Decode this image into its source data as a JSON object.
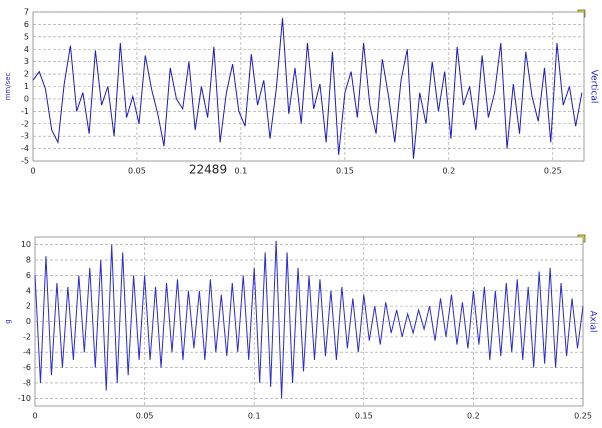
{
  "chart_data": [
    {
      "type": "line",
      "y_label": "mm/sec",
      "annotation": "22489",
      "x": [
        0,
        0.003,
        0.006,
        0.009,
        0.012,
        0.015,
        0.018,
        0.021,
        0.024,
        0.027,
        0.03,
        0.033,
        0.036,
        0.039,
        0.042,
        0.045,
        0.048,
        0.051,
        0.054,
        0.057,
        0.06,
        0.063,
        0.066,
        0.069,
        0.072,
        0.075,
        0.078,
        0.081,
        0.084,
        0.087,
        0.09,
        0.093,
        0.096,
        0.099,
        0.102,
        0.105,
        0.108,
        0.111,
        0.114,
        0.117,
        0.12,
        0.123,
        0.126,
        0.129,
        0.132,
        0.135,
        0.138,
        0.141,
        0.144,
        0.147,
        0.15,
        0.153,
        0.156,
        0.159,
        0.162,
        0.165,
        0.168,
        0.171,
        0.174,
        0.177,
        0.18,
        0.183,
        0.186,
        0.189,
        0.192,
        0.195,
        0.198,
        0.201,
        0.204,
        0.207,
        0.21,
        0.213,
        0.216,
        0.219,
        0.222,
        0.225,
        0.228,
        0.231,
        0.234,
        0.237,
        0.24,
        0.243,
        0.246,
        0.249,
        0.252,
        0.255,
        0.258,
        0.261,
        0.264
      ],
      "series": [
        {
          "name": "Vertical",
          "color": "#1a1acc",
          "values": [
            1.5,
            2.2,
            0.8,
            -2.5,
            -3.5,
            1.2,
            4.3,
            -1,
            0.5,
            -2.8,
            3.9,
            -0.5,
            1,
            -3,
            4.5,
            -1.5,
            0.2,
            -2,
            3.5,
            0.8,
            -1.2,
            -3.8,
            2.5,
            0,
            -0.8,
            3,
            -2.5,
            1,
            -1.5,
            4.2,
            -3.5,
            0.5,
            2.8,
            -1,
            -2.2,
            3.6,
            -0.5,
            1.5,
            -3.2,
            0.8,
            6.5,
            -1.2,
            2.5,
            -2,
            4.5,
            -0.8,
            1.2,
            -3.5,
            3.8,
            -4.5,
            0.5,
            2.2,
            -1.5,
            4.5,
            -0.5,
            -2.8,
            3.2,
            0.2,
            -3.5,
            1.5,
            4,
            -4.8,
            0.5,
            -2,
            3,
            -1,
            2.2,
            -3.2,
            4.2,
            -0.5,
            1,
            -2.5,
            3.5,
            -1.5,
            0.5,
            4.5,
            -4,
            1.2,
            -2.8,
            3.8,
            0.2,
            -1.8,
            2.5,
            -3.5,
            4.5,
            -0.5,
            1,
            -2.2,
            0.5
          ]
        }
      ],
      "xlim": [
        0,
        0.265
      ],
      "xticks": [
        0,
        0.05,
        0.1,
        0.15,
        0.2,
        0.25
      ],
      "ylim": [
        -5,
        7
      ],
      "yticks": [
        -5,
        -4,
        -3,
        -2,
        -1,
        0,
        1,
        2,
        3,
        4,
        5,
        6,
        7
      ],
      "grid": true
    },
    {
      "type": "line",
      "y_label": "g",
      "x": [
        0,
        0.0025,
        0.005,
        0.0075,
        0.01,
        0.0125,
        0.015,
        0.0175,
        0.02,
        0.0225,
        0.025,
        0.0275,
        0.03,
        0.0325,
        0.035,
        0.0375,
        0.04,
        0.0425,
        0.045,
        0.0475,
        0.05,
        0.0525,
        0.055,
        0.0575,
        0.06,
        0.0625,
        0.065,
        0.0675,
        0.07,
        0.0725,
        0.075,
        0.0775,
        0.08,
        0.0825,
        0.085,
        0.0875,
        0.09,
        0.0925,
        0.095,
        0.0975,
        0.1,
        0.1025,
        0.105,
        0.1075,
        0.11,
        0.1125,
        0.115,
        0.1175,
        0.12,
        0.1225,
        0.125,
        0.1275,
        0.13,
        0.1325,
        0.135,
        0.1375,
        0.14,
        0.1425,
        0.145,
        0.1475,
        0.15,
        0.1525,
        0.155,
        0.1575,
        0.16,
        0.1625,
        0.165,
        0.1675,
        0.17,
        0.1725,
        0.175,
        0.1775,
        0.18,
        0.1825,
        0.185,
        0.1875,
        0.19,
        0.1925,
        0.195,
        0.1975,
        0.2,
        0.2025,
        0.205,
        0.2075,
        0.21,
        0.2125,
        0.215,
        0.2175,
        0.22,
        0.2225,
        0.225,
        0.2275,
        0.23,
        0.2325,
        0.235,
        0.2375,
        0.24,
        0.2425,
        0.245,
        0.2475,
        0.25
      ],
      "series": [
        {
          "name": "Axial",
          "color": "#2a2ad8",
          "values": [
            6,
            -8,
            8.5,
            -7,
            5,
            -6,
            4.5,
            -5,
            6,
            -4,
            7,
            -6,
            8,
            -9,
            10,
            -8,
            9,
            -7,
            6,
            -5,
            6,
            -5,
            4.5,
            -6,
            5,
            -4,
            5.5,
            -5,
            4,
            -3.5,
            4,
            -5,
            5.5,
            -4,
            3.5,
            -4.5,
            5,
            -4,
            6,
            -5,
            7,
            -8,
            9,
            -8.5,
            10.5,
            -10,
            9,
            -8,
            7,
            -6.5,
            6,
            -5,
            5.5,
            -4.5,
            4,
            -5,
            4.5,
            -3.5,
            3,
            -4,
            3.5,
            -2.5,
            2,
            -3,
            2.5,
            -1.5,
            1.5,
            -2,
            1,
            -1.5,
            1.5,
            -1,
            2,
            -2.5,
            3,
            -2,
            3.5,
            -3,
            2.5,
            -3.5,
            4,
            -3,
            4.5,
            -5,
            4,
            -4.5,
            5,
            -4,
            5.5,
            -5,
            4.5,
            -6,
            6.5,
            -5.5,
            7,
            -6,
            5,
            -4.5,
            3,
            -3.5,
            2
          ]
        }
      ],
      "xlim": [
        0,
        0.25
      ],
      "xticks": [
        0,
        0.05,
        0.1,
        0.15,
        0.2,
        0.25
      ],
      "ylim": [
        -11,
        11
      ],
      "yticks": [
        -10,
        -8,
        -6,
        -4,
        -2,
        0,
        2,
        4,
        6,
        8,
        10
      ],
      "grid": true
    }
  ]
}
